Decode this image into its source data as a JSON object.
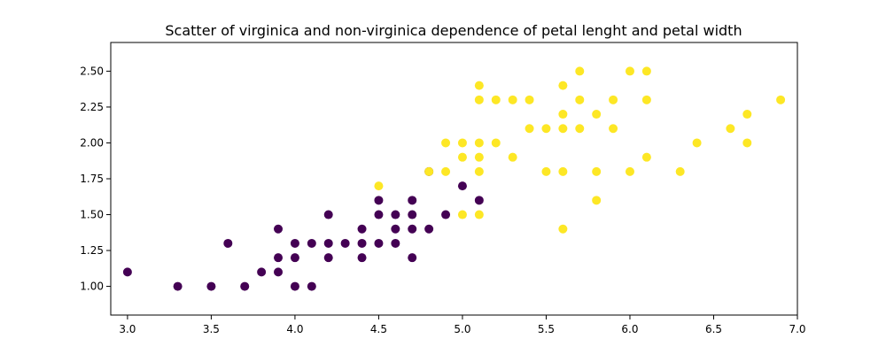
{
  "chart_data": {
    "type": "scatter",
    "title": "Scatter of virginica and non-virginica dependence of petal lenght and petal width",
    "xlabel": "",
    "ylabel": "",
    "xlim": [
      2.9,
      7.0
    ],
    "ylim": [
      0.8,
      2.7
    ],
    "xticks": [
      "3.0",
      "3.5",
      "4.0",
      "4.5",
      "5.0",
      "5.5",
      "6.0",
      "6.5",
      "7.0"
    ],
    "yticks": [
      "1.00",
      "1.25",
      "1.50",
      "1.75",
      "2.00",
      "2.25",
      "2.50"
    ],
    "grid": false,
    "legend": "none",
    "series": [
      {
        "color": "#440154",
        "points": [
          [
            3.0,
            1.1
          ],
          [
            3.3,
            1.0
          ],
          [
            3.5,
            1.0
          ],
          [
            3.6,
            1.3
          ],
          [
            3.7,
            1.0
          ],
          [
            3.8,
            1.1
          ],
          [
            3.9,
            1.1
          ],
          [
            3.9,
            1.2
          ],
          [
            3.9,
            1.4
          ],
          [
            4.0,
            1.0
          ],
          [
            4.0,
            1.2
          ],
          [
            4.0,
            1.3
          ],
          [
            4.1,
            1.0
          ],
          [
            4.1,
            1.3
          ],
          [
            4.2,
            1.2
          ],
          [
            4.2,
            1.3
          ],
          [
            4.2,
            1.5
          ],
          [
            4.3,
            1.3
          ],
          [
            4.4,
            1.2
          ],
          [
            4.4,
            1.3
          ],
          [
            4.4,
            1.4
          ],
          [
            4.5,
            1.3
          ],
          [
            4.5,
            1.5
          ],
          [
            4.5,
            1.6
          ],
          [
            4.6,
            1.3
          ],
          [
            4.6,
            1.4
          ],
          [
            4.6,
            1.5
          ],
          [
            4.7,
            1.2
          ],
          [
            4.7,
            1.4
          ],
          [
            4.7,
            1.5
          ],
          [
            4.7,
            1.6
          ],
          [
            4.8,
            1.4
          ],
          [
            4.8,
            1.8
          ],
          [
            4.9,
            1.5
          ],
          [
            5.0,
            1.7
          ],
          [
            5.1,
            1.6
          ]
        ]
      },
      {
        "color": "#fde725",
        "points": [
          [
            4.5,
            1.7
          ],
          [
            4.8,
            1.8
          ],
          [
            4.9,
            1.8
          ],
          [
            4.9,
            2.0
          ],
          [
            5.0,
            1.5
          ],
          [
            5.0,
            1.9
          ],
          [
            5.0,
            2.0
          ],
          [
            5.1,
            1.5
          ],
          [
            5.1,
            1.8
          ],
          [
            5.1,
            1.9
          ],
          [
            5.1,
            2.0
          ],
          [
            5.1,
            2.3
          ],
          [
            5.1,
            2.4
          ],
          [
            5.2,
            2.0
          ],
          [
            5.2,
            2.3
          ],
          [
            5.3,
            1.9
          ],
          [
            5.3,
            2.3
          ],
          [
            5.4,
            2.1
          ],
          [
            5.4,
            2.3
          ],
          [
            5.5,
            1.8
          ],
          [
            5.5,
            2.1
          ],
          [
            5.6,
            1.4
          ],
          [
            5.6,
            1.8
          ],
          [
            5.6,
            2.1
          ],
          [
            5.6,
            2.2
          ],
          [
            5.6,
            2.4
          ],
          [
            5.7,
            2.1
          ],
          [
            5.7,
            2.3
          ],
          [
            5.7,
            2.5
          ],
          [
            5.8,
            1.6
          ],
          [
            5.8,
            1.8
          ],
          [
            5.8,
            2.2
          ],
          [
            5.9,
            2.1
          ],
          [
            5.9,
            2.3
          ],
          [
            6.0,
            1.8
          ],
          [
            6.0,
            2.5
          ],
          [
            6.1,
            1.9
          ],
          [
            6.1,
            2.3
          ],
          [
            6.1,
            2.5
          ],
          [
            6.3,
            1.8
          ],
          [
            6.4,
            2.0
          ],
          [
            6.6,
            2.1
          ],
          [
            6.7,
            2.0
          ],
          [
            6.7,
            2.2
          ],
          [
            6.9,
            2.3
          ]
        ]
      }
    ]
  }
}
